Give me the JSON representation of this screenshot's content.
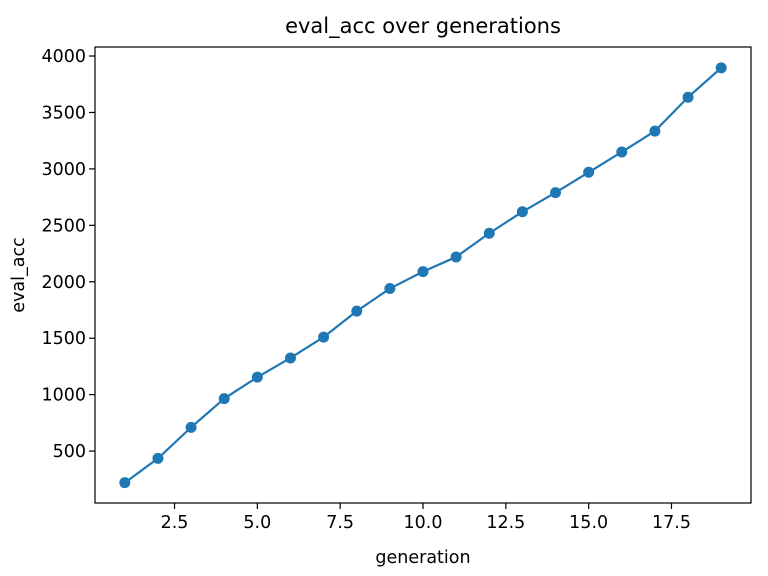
{
  "figure": {
    "background_color": "#ffffff",
    "text_color": "#000000",
    "axis_color": "#000000"
  },
  "chart_data": {
    "type": "line",
    "title": "eval_acc over generations",
    "xlabel": "generation",
    "ylabel": "eval_acc",
    "series": [
      {
        "name": "eval_acc",
        "x": [
          1,
          2,
          3,
          4,
          5,
          6,
          7,
          8,
          9,
          10,
          11,
          12,
          13,
          14,
          15,
          16,
          17,
          18,
          19
        ],
        "values": [
          220,
          435,
          710,
          965,
          1155,
          1325,
          1510,
          1740,
          1940,
          2090,
          2220,
          2430,
          2620,
          2790,
          2970,
          3150,
          3335,
          3635,
          3895
        ],
        "line_color": "#1f77b4",
        "marker": "circle"
      }
    ],
    "x_tick_values": [
      2.5,
      5.0,
      7.5,
      10.0,
      12.5,
      15.0,
      17.5
    ],
    "x_tick_labels": [
      "2.5",
      "5.0",
      "7.5",
      "10.0",
      "12.5",
      "15.0",
      "17.5"
    ],
    "y_tick_values": [
      500,
      1000,
      1500,
      2000,
      2500,
      3000,
      3500,
      4000
    ],
    "y_tick_labels": [
      "500",
      "1000",
      "1500",
      "2000",
      "2500",
      "3000",
      "3500",
      "4000"
    ],
    "xlim": [
      0.1,
      19.9
    ],
    "ylim": [
      40,
      4080
    ],
    "grid": false,
    "legend": "none"
  }
}
